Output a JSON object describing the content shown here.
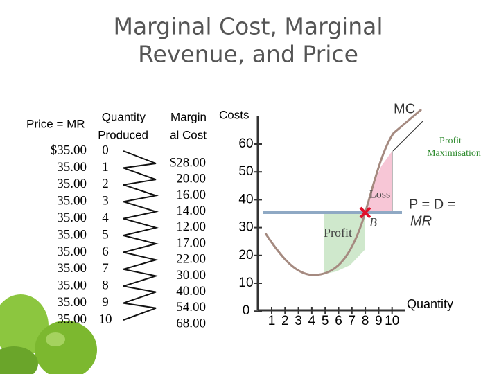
{
  "title": [
    "Marginal Cost, Marginal",
    "Revenue, and Price"
  ],
  "table": {
    "headers": {
      "price": "Price = MR",
      "quantity": [
        "Quantity",
        "Produced"
      ],
      "marginal_cost": [
        "Margin",
        "al Cost"
      ]
    },
    "price": [
      "$35.00",
      "35.00",
      "35.00",
      "35.00",
      "35.00",
      "35.00",
      "35.00",
      "35.00",
      "35.00",
      "35.00",
      "35.00"
    ],
    "quantity": [
      "0",
      "1",
      "2",
      "3",
      "4",
      "5",
      "6",
      "7",
      "8",
      "9",
      "10"
    ],
    "marginal_cost": [
      "$28.00",
      "20.00",
      "16.00",
      "14.00",
      "12.00",
      "17.00",
      "22.00",
      "30.00",
      "40.00",
      "54.00",
      "68.00"
    ]
  },
  "graph": {
    "y_axis_label": "Costs",
    "y_ticks": [
      "60",
      "50",
      "40",
      "30",
      "20",
      "10",
      "0"
    ],
    "x_ticks": [
      "1",
      "2",
      "3",
      "4",
      "5",
      "6",
      "7",
      "8",
      "9",
      "10"
    ],
    "x_axis_label": "Quantity",
    "curve_label": "MC",
    "callout": [
      "Profit",
      "Maximisation"
    ],
    "loss_label": "Loss",
    "profit_label": "Profit",
    "point_label": "B",
    "price_label": [
      "P = D =",
      "MR"
    ]
  }
}
